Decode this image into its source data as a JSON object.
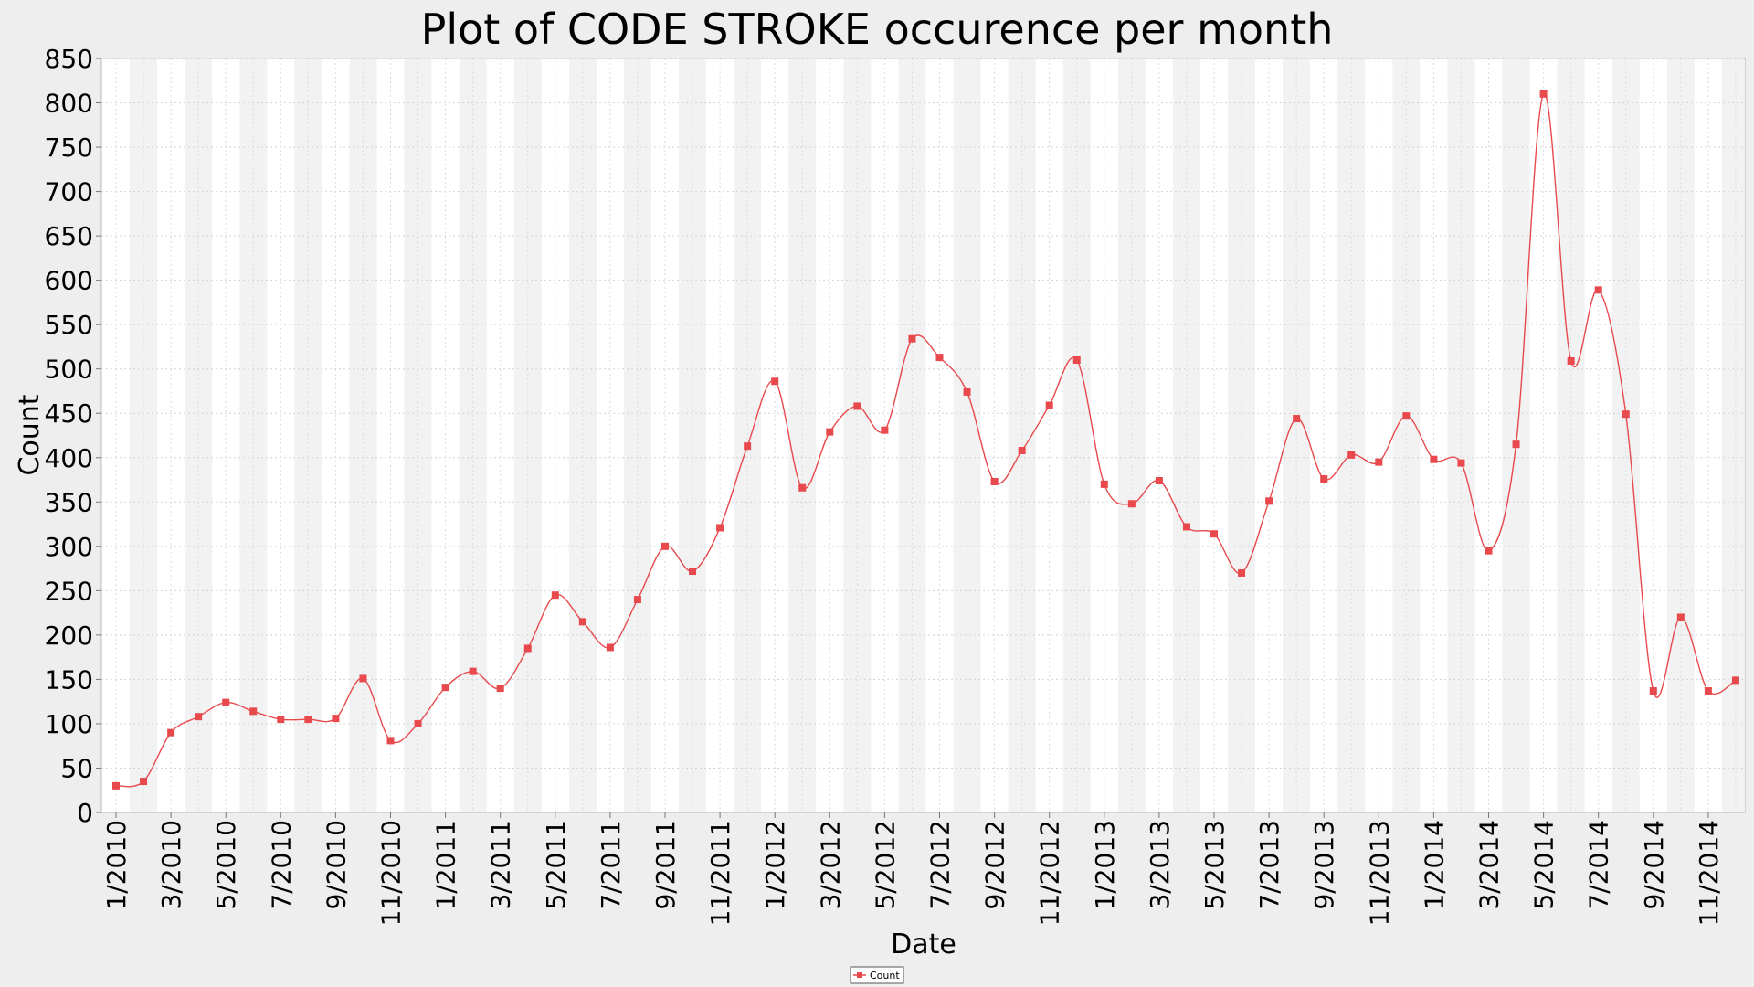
{
  "chart_data": {
    "type": "line",
    "title": "Plot of CODE STROKE occurence per month",
    "xlabel": "Date",
    "ylabel": "Count",
    "ylim": [
      0,
      850
    ],
    "yticks": [
      0,
      50,
      100,
      150,
      200,
      250,
      300,
      350,
      400,
      450,
      500,
      550,
      600,
      650,
      700,
      750,
      800,
      850
    ],
    "xtick_labels": [
      "1/2010",
      "3/2010",
      "5/2010",
      "7/2010",
      "9/2010",
      "11/2010",
      "1/2011",
      "3/2011",
      "5/2011",
      "7/2011",
      "9/2011",
      "11/2011",
      "1/2012",
      "3/2012",
      "5/2012",
      "7/2012",
      "9/2012",
      "11/2012",
      "1/2013",
      "3/2013",
      "5/2013",
      "7/2013",
      "9/2013",
      "11/2013",
      "1/2014",
      "3/2014",
      "5/2014",
      "7/2014",
      "9/2014",
      "11/2014"
    ],
    "x": [
      "1/2010",
      "2/2010",
      "3/2010",
      "4/2010",
      "5/2010",
      "6/2010",
      "7/2010",
      "8/2010",
      "9/2010",
      "10/2010",
      "11/2010",
      "12/2010",
      "1/2011",
      "2/2011",
      "3/2011",
      "4/2011",
      "5/2011",
      "6/2011",
      "7/2011",
      "8/2011",
      "9/2011",
      "10/2011",
      "11/2011",
      "12/2011",
      "1/2012",
      "2/2012",
      "3/2012",
      "4/2012",
      "5/2012",
      "6/2012",
      "7/2012",
      "8/2012",
      "9/2012",
      "10/2012",
      "11/2012",
      "12/2012",
      "1/2013",
      "2/2013",
      "3/2013",
      "4/2013",
      "5/2013",
      "6/2013",
      "7/2013",
      "8/2013",
      "9/2013",
      "10/2013",
      "11/2013",
      "12/2013",
      "1/2014",
      "2/2014",
      "3/2014",
      "4/2014",
      "5/2014",
      "6/2014",
      "7/2014",
      "8/2014",
      "9/2014",
      "10/2014",
      "11/2014",
      "12/2014"
    ],
    "series": [
      {
        "name": "Count",
        "color": "#e8494d",
        "values": [
          30,
          35,
          90,
          108,
          124,
          114,
          105,
          105,
          106,
          151,
          81,
          100,
          141,
          159,
          140,
          185,
          245,
          215,
          186,
          240,
          300,
          272,
          321,
          413,
          486,
          366,
          429,
          458,
          431,
          534,
          513,
          474,
          373,
          408,
          459,
          510,
          370,
          348,
          374,
          322,
          314,
          270,
          351,
          444,
          376,
          403,
          395,
          447,
          398,
          394,
          295,
          415,
          810,
          509,
          589,
          449,
          137,
          220,
          137,
          149
        ]
      }
    ],
    "grid": true,
    "legend": "bottom-center"
  }
}
